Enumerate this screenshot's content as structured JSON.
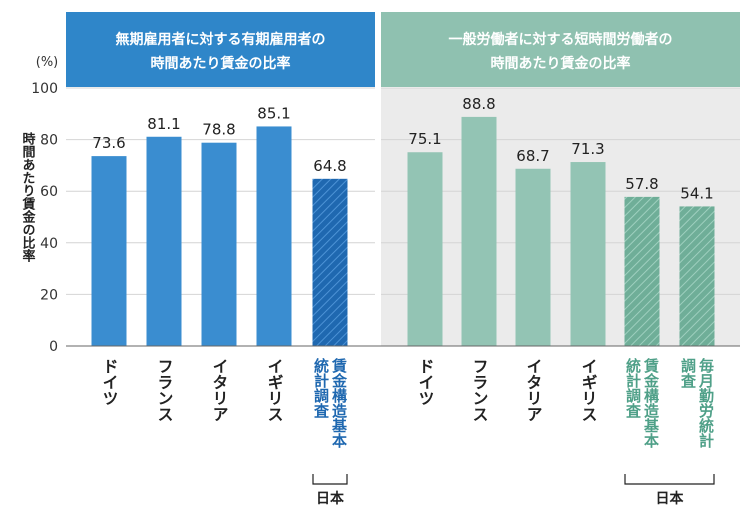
{
  "chart_data": {
    "type": "bar",
    "unit_label": "(%)",
    "ylabel": "時間あたり賃金の比率",
    "ylim": [
      0,
      100
    ],
    "yticks": [
      0,
      20,
      40,
      60,
      80,
      100
    ],
    "grid": true,
    "panels": [
      {
        "title_line1": "無期雇用者に対する有期雇用者の",
        "title_line2": "時間あたり賃金の比率",
        "header_color": "#2f86c9",
        "background": "#ffffff",
        "bar_color": "#3a8dd0",
        "japan_color": "#1f68b0",
        "japan_text_color": "#1f68b0",
        "group_label": "日本",
        "bars": [
          {
            "label": "ドイツ",
            "value": 73.6,
            "japan": false
          },
          {
            "label": "フランス",
            "value": 81.1,
            "japan": false
          },
          {
            "label": "イタリア",
            "value": 78.8,
            "japan": false
          },
          {
            "label": "イギリス",
            "value": 85.1,
            "japan": false
          },
          {
            "label_lines": [
              "賃金構造基本",
              "統計調査"
            ],
            "value": 64.8,
            "japan": true
          }
        ]
      },
      {
        "title_line1": "一般労働者に対する短時間労働者の",
        "title_line2": "時間あたり賃金の比率",
        "header_color": "#8fc1b0",
        "background": "#ebebeb",
        "bar_color": "#93c4b4",
        "japan_color": "#6fae98",
        "japan_text_color": "#4fa088",
        "group_label": "日本",
        "bars": [
          {
            "label": "ドイツ",
            "value": 75.1,
            "japan": false
          },
          {
            "label": "フランス",
            "value": 88.8,
            "japan": false
          },
          {
            "label": "イタリア",
            "value": 68.7,
            "japan": false
          },
          {
            "label": "イギリス",
            "value": 71.3,
            "japan": false
          },
          {
            "label_lines": [
              "賃金構造基本",
              "統計調査"
            ],
            "value": 57.8,
            "japan": true
          },
          {
            "label_lines": [
              "毎月勤労統計",
              "調査"
            ],
            "value": 54.1,
            "japan": true
          }
        ]
      }
    ]
  }
}
